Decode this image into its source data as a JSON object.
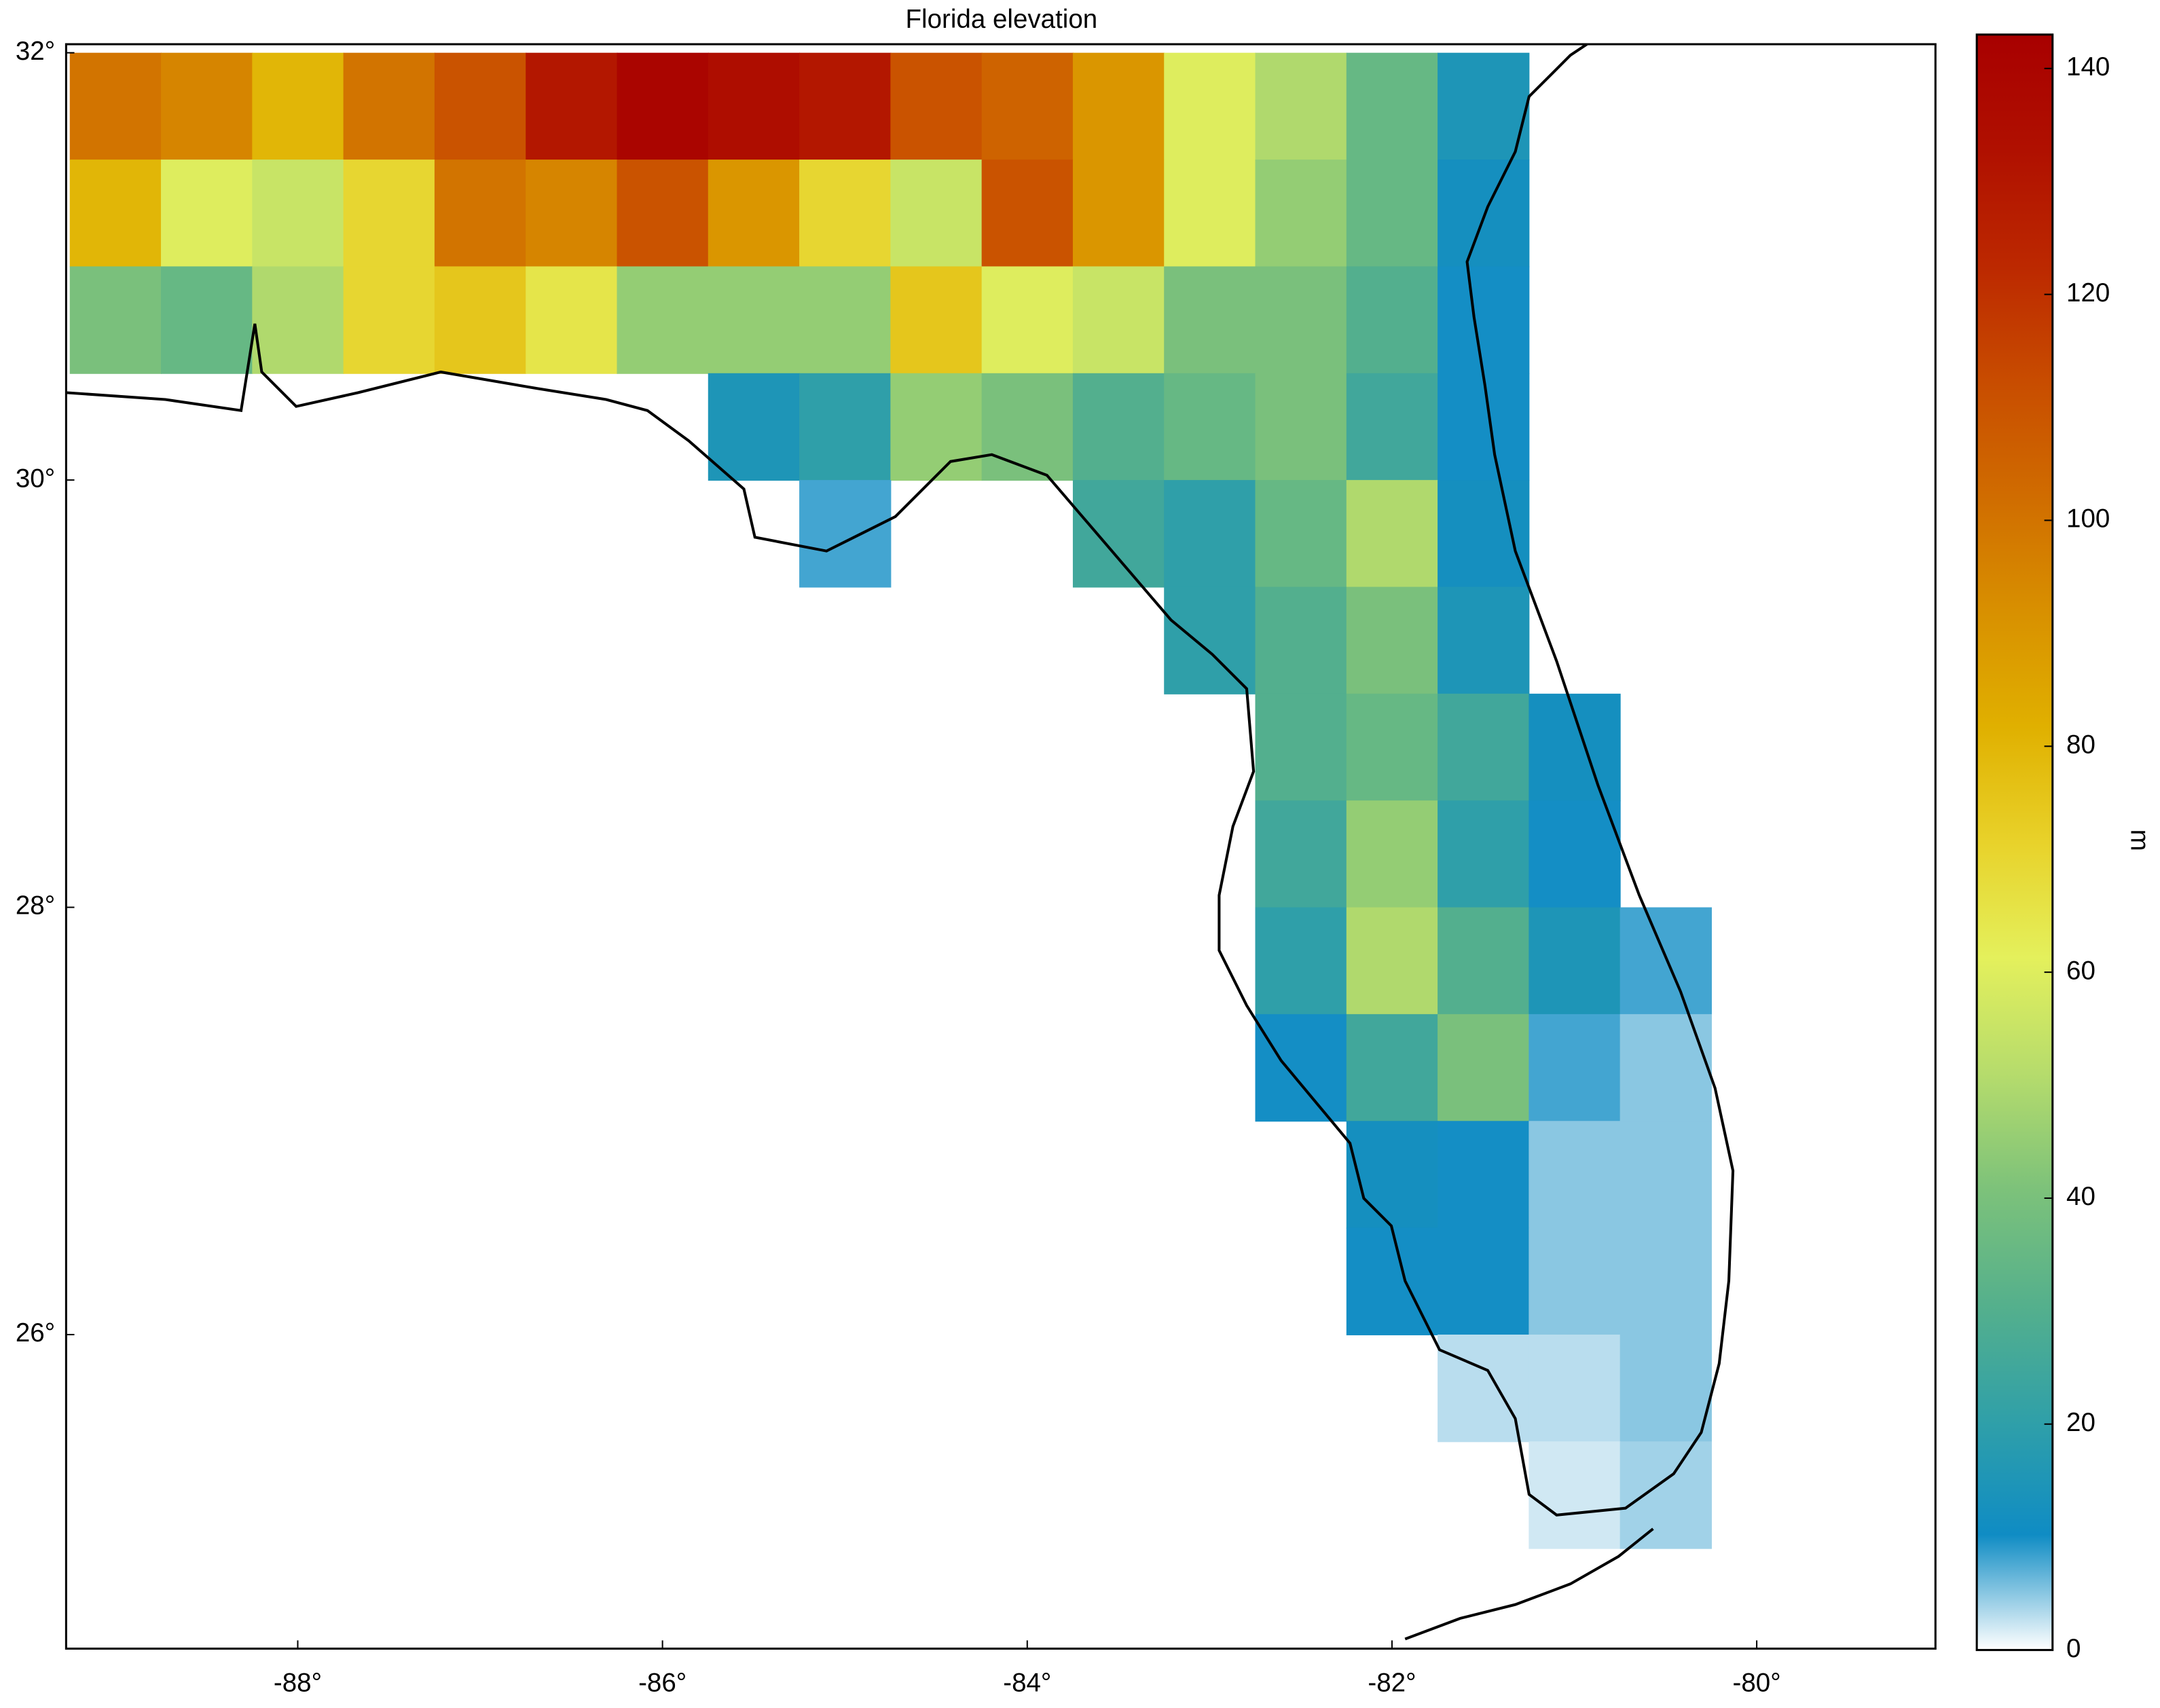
{
  "chart_data": {
    "type": "heatmap",
    "title": "Florida elevation",
    "xlim": [
      -89.27,
      -79.02
    ],
    "ylim": [
      24.53,
      32.04
    ],
    "xticks": [
      {
        "value": -88,
        "label": "-88°"
      },
      {
        "value": -86,
        "label": "-86°"
      },
      {
        "value": -84,
        "label": "-84°"
      },
      {
        "value": -82,
        "label": "-82°"
      },
      {
        "value": -80,
        "label": "-80°"
      }
    ],
    "yticks": [
      {
        "value": 26,
        "label": "26°"
      },
      {
        "value": 28,
        "label": "28°"
      },
      {
        "value": 30,
        "label": "30°"
      },
      {
        "value": 32,
        "label": "32°"
      }
    ],
    "x": [
      -89,
      -88.5,
      -88,
      -87.5,
      -87,
      -86.5,
      -86,
      -85.5,
      -85,
      -84.5,
      -84,
      -83.5,
      -83,
      -82.5,
      -82,
      -81.5,
      -81,
      -80.5,
      -80
    ],
    "y": [
      31.75,
      31.25,
      30.75,
      30.25,
      29.75,
      29.25,
      28.75,
      28.25,
      27.75,
      27.25,
      26.75,
      26.25,
      25.75,
      25.25
    ],
    "z": [
      [
        100,
        95,
        80,
        100,
        110,
        130,
        140,
        135,
        130,
        110,
        105,
        90,
        60,
        50,
        35,
        15,
        null,
        null,
        null
      ],
      [
        80,
        60,
        55,
        70,
        100,
        95,
        110,
        90,
        70,
        55,
        110,
        90,
        60,
        45,
        35,
        12,
        null,
        null,
        null
      ],
      [
        40,
        35,
        50,
        70,
        75,
        65,
        45,
        45,
        45,
        75,
        60,
        55,
        40,
        40,
        30,
        10,
        null,
        null,
        null
      ],
      [
        null,
        null,
        null,
        null,
        null,
        null,
        null,
        15,
        20,
        45,
        40,
        30,
        35,
        40,
        25,
        10,
        null,
        null,
        null
      ],
      [
        null,
        null,
        null,
        null,
        null,
        null,
        null,
        null,
        8,
        null,
        null,
        25,
        20,
        35,
        50,
        12,
        null,
        null,
        null
      ],
      [
        null,
        null,
        null,
        null,
        null,
        null,
        null,
        null,
        null,
        null,
        null,
        null,
        20,
        30,
        40,
        15,
        null,
        null,
        null
      ],
      [
        null,
        null,
        null,
        null,
        null,
        null,
        null,
        null,
        null,
        null,
        null,
        null,
        null,
        30,
        35,
        25,
        12,
        null,
        null
      ],
      [
        null,
        null,
        null,
        null,
        null,
        null,
        null,
        null,
        null,
        null,
        null,
        null,
        null,
        25,
        45,
        20,
        10,
        null,
        null
      ],
      [
        null,
        null,
        null,
        null,
        null,
        null,
        null,
        null,
        null,
        null,
        null,
        null,
        null,
        20,
        50,
        30,
        15,
        8,
        null
      ],
      [
        null,
        null,
        null,
        null,
        null,
        null,
        null,
        null,
        null,
        null,
        null,
        null,
        null,
        10,
        25,
        40,
        8,
        5,
        null
      ],
      [
        null,
        null,
        null,
        null,
        null,
        null,
        null,
        null,
        null,
        null,
        null,
        null,
        null,
        null,
        12,
        10,
        5,
        5,
        null
      ],
      [
        null,
        null,
        null,
        null,
        null,
        null,
        null,
        null,
        null,
        null,
        null,
        null,
        null,
        null,
        10,
        10,
        5,
        5,
        null
      ],
      [
        null,
        null,
        null,
        null,
        null,
        null,
        null,
        null,
        null,
        null,
        null,
        null,
        null,
        null,
        null,
        3,
        3,
        5,
        null
      ],
      [
        null,
        null,
        null,
        null,
        null,
        null,
        null,
        null,
        null,
        null,
        null,
        null,
        null,
        null,
        null,
        null,
        2,
        4,
        null
      ]
    ],
    "cell": 0.5,
    "colorbar": {
      "label": "m",
      "clim": [
        0,
        143
      ],
      "ticks": [
        0,
        20,
        40,
        60,
        80,
        100,
        120,
        140
      ],
      "colormap": [
        "#ffffff",
        "#0f8cc4",
        "#30a0a8",
        "#55b08c",
        "#7dc27a",
        "#b6dc6c",
        "#e4f05c",
        "#e8d22a",
        "#e0b000",
        "#d89000",
        "#d06c00",
        "#c84c00",
        "#bc2800",
        "#b01000",
        "#a80000"
      ]
    }
  }
}
